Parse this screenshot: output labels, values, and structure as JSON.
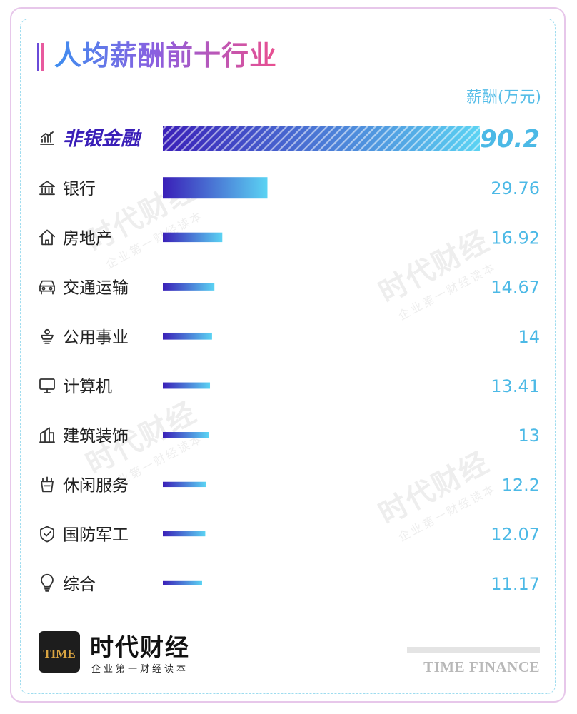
{
  "header": {
    "title": "人均薪酬前十行业",
    "unit": "薪酬(万元)"
  },
  "chart_data": {
    "type": "bar",
    "orientation": "horizontal",
    "title": "人均薪酬前十行业",
    "value_label": "薪酬(万元)",
    "categories": [
      "非银金融",
      "银行",
      "房地产",
      "交通运输",
      "公用事业",
      "计算机",
      "建筑装饰",
      "休闲服务",
      "国防军工",
      "综合"
    ],
    "values": [
      90.2,
      29.76,
      16.92,
      14.67,
      14,
      13.41,
      13,
      12.2,
      12.07,
      11.17
    ],
    "value_labels": [
      "90.2",
      "29.76",
      "16.92",
      "14.67",
      "14",
      "13.41",
      "13",
      "12.2",
      "12.07",
      "11.17"
    ],
    "icons": [
      "growth-chart-icon",
      "bank-icon",
      "house-icon",
      "car-icon",
      "utility-icon",
      "monitor-icon",
      "building-icon",
      "leisure-cup-icon",
      "shield-check-icon",
      "lightbulb-icon"
    ],
    "highlight_index": 0,
    "colors": {
      "gradient_start": "#3a1fb8",
      "gradient_end": "#5bd3f3",
      "value_text": "#4cb9e6",
      "highlight_text": "#3a1fb8",
      "label_text": "#222222",
      "icon": "#333333"
    }
  },
  "watermark": {
    "text": "时代财经",
    "subtext": "企业第一财经读本"
  },
  "footer": {
    "logo_text": "TIME",
    "brand_name": "时代财经",
    "slogan": "企业第一财经读本",
    "english_name": "TIME FINANCE"
  }
}
